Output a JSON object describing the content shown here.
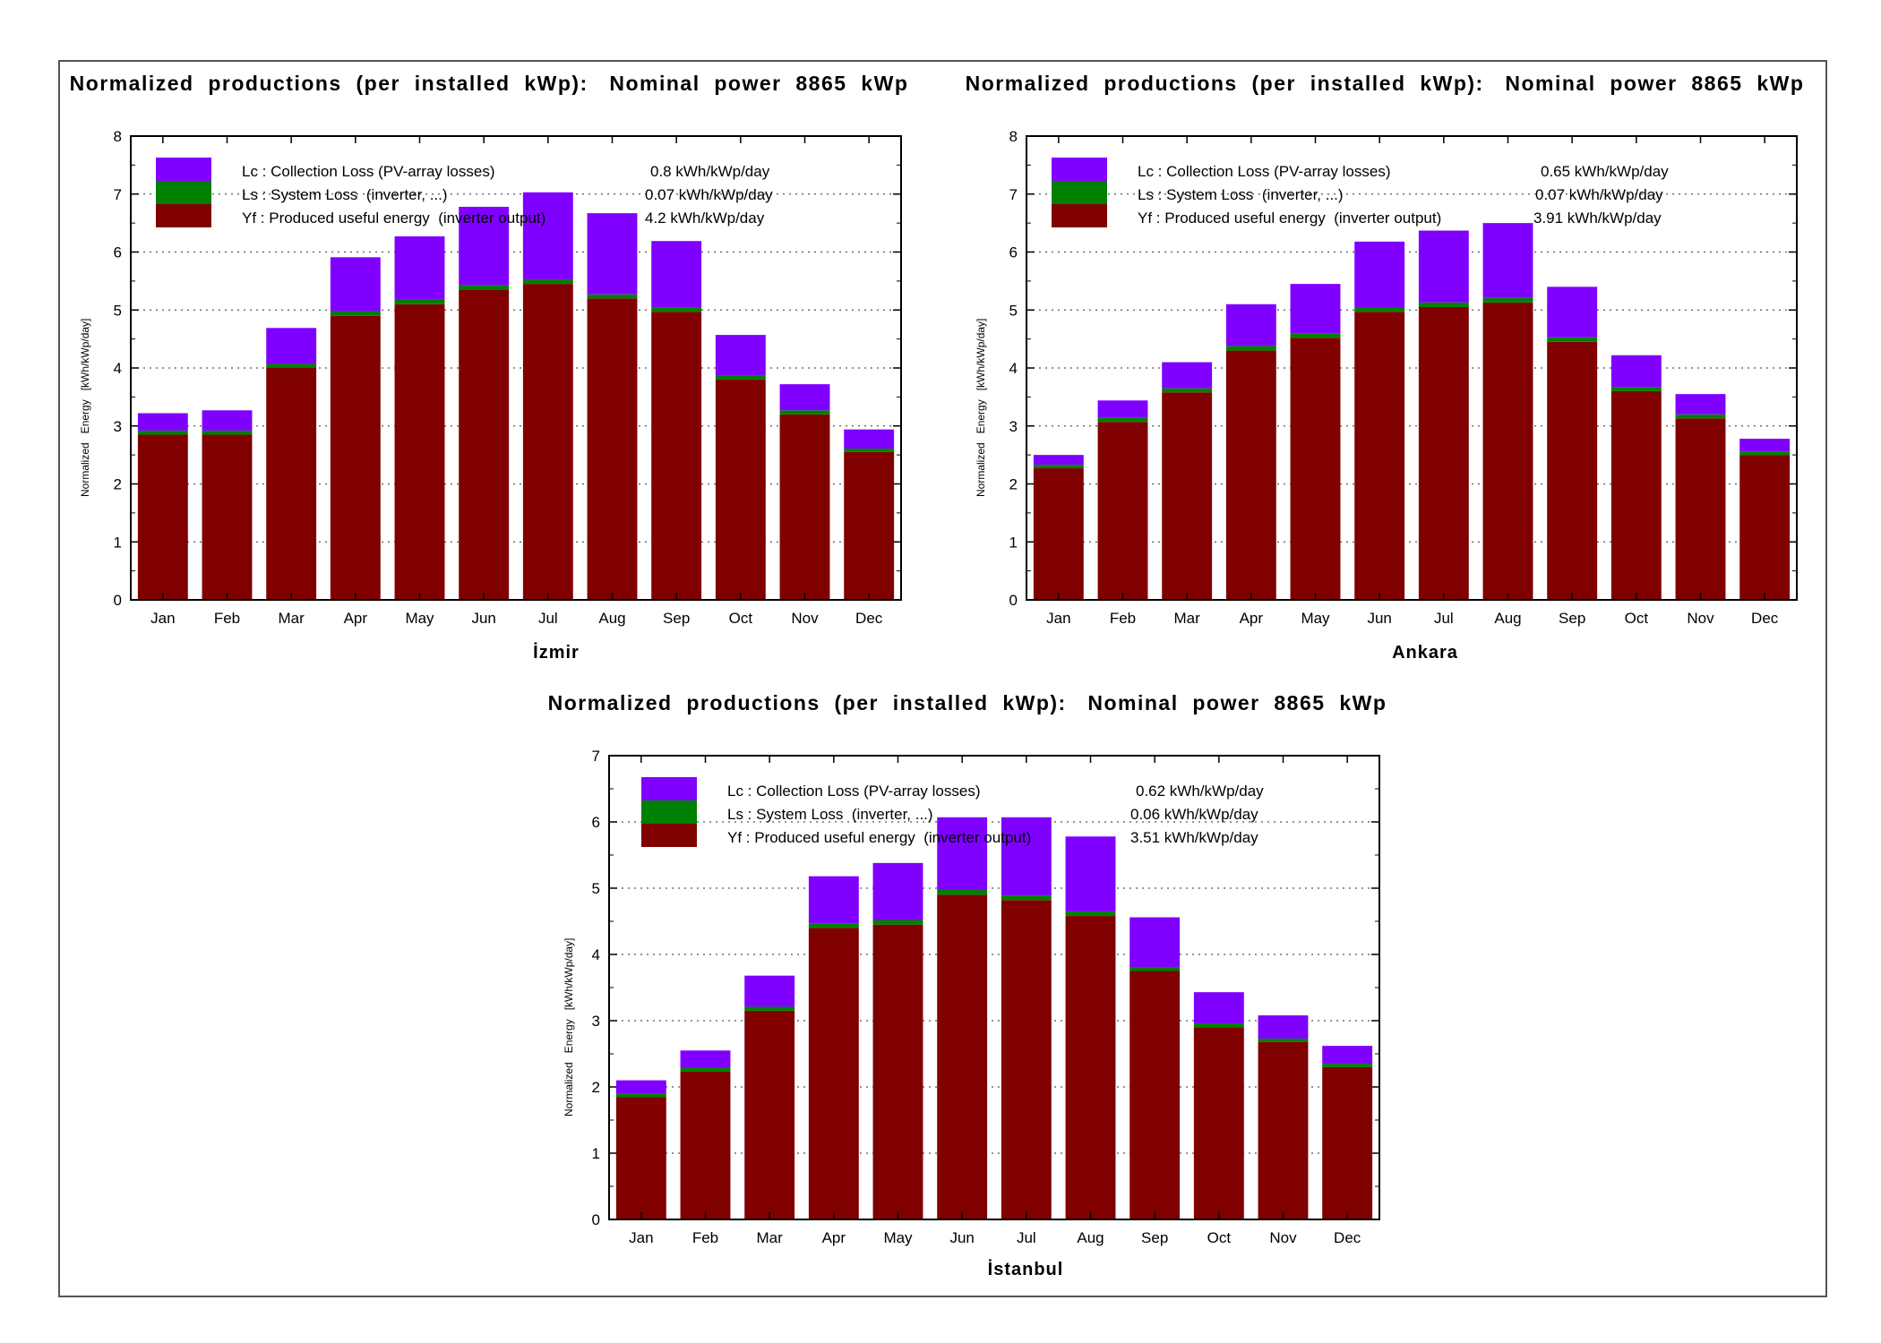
{
  "colors": {
    "collection_loss": "#8000ff",
    "system_loss": "#008000",
    "useful_energy": "#800000"
  },
  "chart_data": [
    {
      "type": "bar",
      "title": "Normalized  productions  (per  installed  kWp):   Nominal  power  8865  kWp",
      "location": "İzmir",
      "ylabel": "Normalized   Energy   [kWh/kWp/day]",
      "ylim": [
        0,
        8
      ],
      "yticks": [
        "0",
        "1",
        "2",
        "3",
        "4",
        "5",
        "6",
        "7",
        "8"
      ],
      "categories": [
        "Jan",
        "Feb",
        "Mar",
        "Apr",
        "May",
        "Jun",
        "Jul",
        "Aug",
        "Sep",
        "Oct",
        "Nov",
        "Dec"
      ],
      "legend_position": "top-left",
      "series": [
        {
          "name": "Yf : Produced useful energy  (inverter output)",
          "value_label": "4.2 kWh/kWp/day",
          "values": [
            2.85,
            2.85,
            4.0,
            4.9,
            5.1,
            5.35,
            5.45,
            5.2,
            4.97,
            3.8,
            3.2,
            2.55
          ]
        },
        {
          "name": "Ls : System Loss  (inverter, ...)",
          "value_label": "0.07 kWh/kWp/day",
          "values": [
            0.07,
            0.07,
            0.07,
            0.08,
            0.09,
            0.08,
            0.08,
            0.07,
            0.07,
            0.07,
            0.07,
            0.06
          ]
        },
        {
          "name": "Lc : Collection Loss (PV-array losses)",
          "value_label": "0.8 kWh/kWp/day",
          "values": [
            0.3,
            0.35,
            0.62,
            0.93,
            1.08,
            1.35,
            1.5,
            1.4,
            1.15,
            0.7,
            0.45,
            0.33
          ]
        }
      ]
    },
    {
      "type": "bar",
      "title": "Normalized  productions  (per  installed  kWp):   Nominal  power  8865  kWp",
      "location": "Ankara",
      "ylabel": "Normalized   Energy   [kWh/kWp/day]",
      "ylim": [
        0,
        8
      ],
      "yticks": [
        "0",
        "1",
        "2",
        "3",
        "4",
        "5",
        "6",
        "7",
        "8"
      ],
      "categories": [
        "Jan",
        "Feb",
        "Mar",
        "Apr",
        "May",
        "Jun",
        "Jul",
        "Aug",
        "Sep",
        "Oct",
        "Nov",
        "Dec"
      ],
      "legend_position": "top-left",
      "series": [
        {
          "name": "Yf : Produced useful energy  (inverter output)",
          "value_label": "3.91 kWh/kWp/day",
          "values": [
            2.27,
            3.07,
            3.58,
            4.3,
            4.52,
            4.97,
            5.05,
            5.13,
            4.45,
            3.6,
            3.13,
            2.5
          ]
        },
        {
          "name": "Ls : System Loss  (inverter, ...)",
          "value_label": "0.07 kWh/kWp/day",
          "values": [
            0.06,
            0.07,
            0.07,
            0.08,
            0.08,
            0.08,
            0.08,
            0.08,
            0.08,
            0.07,
            0.07,
            0.06
          ]
        },
        {
          "name": "Lc : Collection Loss (PV-array losses)",
          "value_label": "0.65 kWh/kWp/day",
          "values": [
            0.17,
            0.3,
            0.45,
            0.72,
            0.85,
            1.13,
            1.24,
            1.29,
            0.87,
            0.55,
            0.35,
            0.22
          ]
        }
      ]
    },
    {
      "type": "bar",
      "title": "Normalized  productions  (per  installed  kWp):   Nominal  power  8865  kWp",
      "location": "İstanbul",
      "ylabel": "Normalized   Energy   [kWh/kWp/day]",
      "ylim": [
        0,
        7
      ],
      "yticks": [
        "0",
        "1",
        "2",
        "3",
        "4",
        "5",
        "6",
        "7"
      ],
      "categories": [
        "Jan",
        "Feb",
        "Mar",
        "Apr",
        "May",
        "Jun",
        "Jul",
        "Aug",
        "Sep",
        "Oct",
        "Nov",
        "Dec"
      ],
      "legend_position": "top-left",
      "series": [
        {
          "name": "Yf : Produced useful energy  (inverter output)",
          "value_label": "3.51 kWh/kWp/day",
          "values": [
            1.85,
            2.23,
            3.15,
            4.4,
            4.45,
            4.9,
            4.82,
            4.58,
            3.75,
            2.9,
            2.68,
            2.3
          ]
        },
        {
          "name": "Ls : System Loss  (inverter, ...)",
          "value_label": "0.06 kWh/kWp/day",
          "values": [
            0.05,
            0.06,
            0.06,
            0.07,
            0.07,
            0.08,
            0.07,
            0.07,
            0.06,
            0.06,
            0.05,
            0.05
          ]
        },
        {
          "name": "Lc : Collection Loss (PV-array losses)",
          "value_label": "0.62 kWh/kWp/day",
          "values": [
            0.2,
            0.26,
            0.47,
            0.71,
            0.86,
            1.09,
            1.18,
            1.13,
            0.75,
            0.47,
            0.35,
            0.27
          ]
        }
      ]
    }
  ]
}
